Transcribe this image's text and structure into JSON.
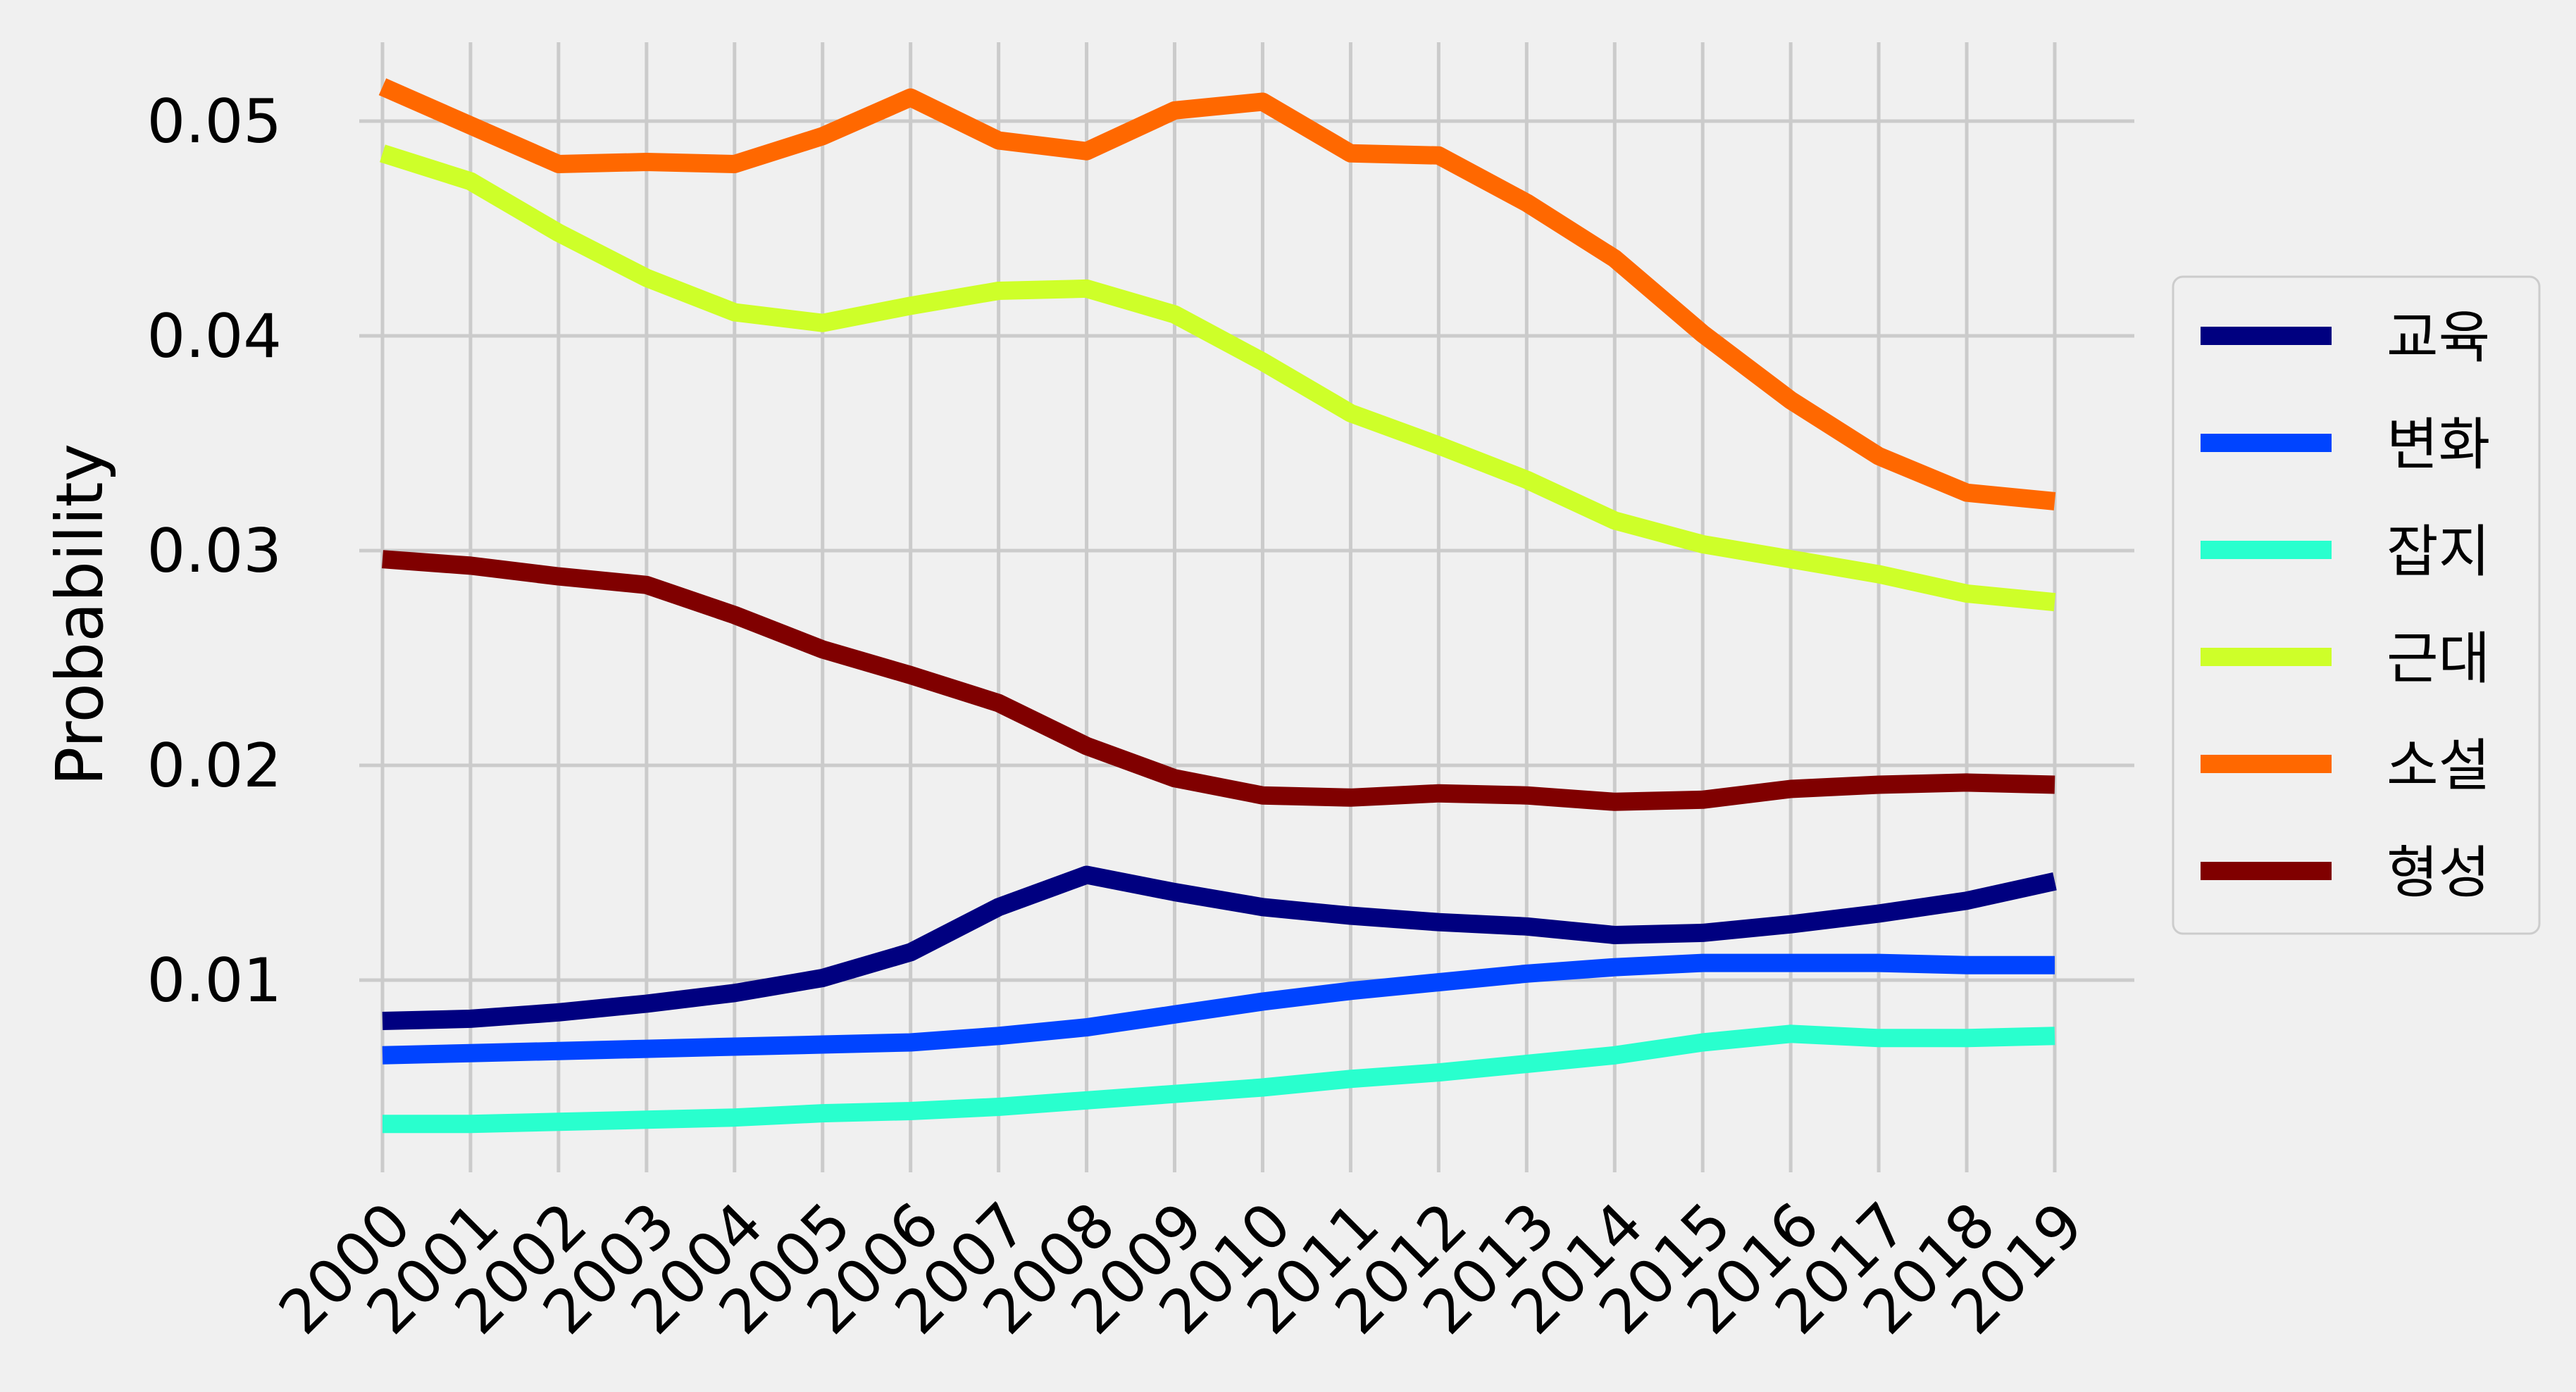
{
  "chart_data": {
    "type": "line",
    "title": "",
    "xlabel": "",
    "ylabel": "Probability",
    "x": [
      "2000",
      "2001",
      "2002",
      "2003",
      "2004",
      "2005",
      "2006",
      "2007",
      "2008",
      "2009",
      "2010",
      "2011",
      "2012",
      "2013",
      "2014",
      "2015",
      "2016",
      "2017",
      "2018",
      "2019"
    ],
    "yticks": [
      "0.01",
      "0.02",
      "0.03",
      "0.04",
      "0.05"
    ],
    "ylim": [
      0.0015,
      0.054
    ],
    "grid": true,
    "legend_position": "right",
    "series": [
      {
        "name": "교육",
        "color": "#000080",
        "values": [
          0.0081,
          0.0082,
          0.0085,
          0.0089,
          0.0094,
          0.0101,
          0.0113,
          0.0134,
          0.0149,
          0.0141,
          0.0134,
          0.013,
          0.0127,
          0.0125,
          0.0121,
          0.0122,
          0.0126,
          0.0131,
          0.0137,
          0.0146
        ]
      },
      {
        "name": "변화",
        "color": "#0044ff",
        "values": [
          0.0065,
          0.0066,
          0.0067,
          0.0068,
          0.0069,
          0.007,
          0.0071,
          0.0074,
          0.0078,
          0.0084,
          0.009,
          0.0095,
          0.0099,
          0.0103,
          0.0106,
          0.0108,
          0.0108,
          0.0108,
          0.0107,
          0.0107
        ]
      },
      {
        "name": "잡지",
        "color": "#29ffce",
        "values": [
          0.0033,
          0.0033,
          0.0034,
          0.0035,
          0.0036,
          0.0038,
          0.0039,
          0.0041,
          0.0044,
          0.0047,
          0.005,
          0.0054,
          0.0057,
          0.0061,
          0.0065,
          0.0071,
          0.0075,
          0.0073,
          0.0073,
          0.0074
        ]
      },
      {
        "name": "근대",
        "color": "#ceff29",
        "values": [
          0.0485,
          0.0472,
          0.0448,
          0.0427,
          0.0411,
          0.0406,
          0.0414,
          0.0421,
          0.0422,
          0.041,
          0.0388,
          0.0364,
          0.0349,
          0.0333,
          0.0314,
          0.0303,
          0.0296,
          0.0289,
          0.028,
          0.0276
        ]
      },
      {
        "name": "소설",
        "color": "#ff6800",
        "values": [
          0.0516,
          0.0498,
          0.048,
          0.0481,
          0.048,
          0.0493,
          0.0511,
          0.0491,
          0.0486,
          0.0505,
          0.0509,
          0.0485,
          0.0484,
          0.0462,
          0.0436,
          0.0401,
          0.037,
          0.0344,
          0.0327,
          0.0323
        ]
      },
      {
        "name": "형성",
        "color": "#800000",
        "values": [
          0.0296,
          0.0293,
          0.0288,
          0.0284,
          0.027,
          0.0254,
          0.0242,
          0.0229,
          0.0209,
          0.0194,
          0.0186,
          0.0185,
          0.0187,
          0.0186,
          0.0183,
          0.0184,
          0.0189,
          0.0191,
          0.0192,
          0.0191
        ]
      }
    ]
  }
}
